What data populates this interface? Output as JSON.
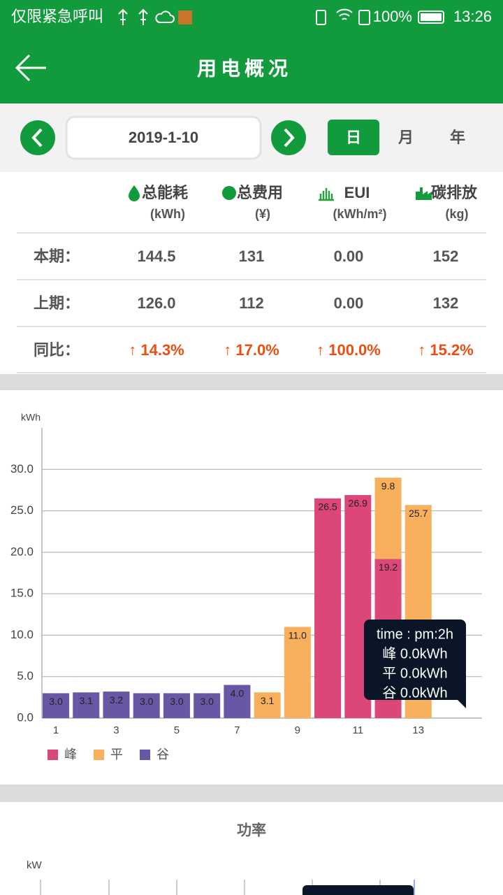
{
  "status_bar": {
    "carrier": "仅限紧急呼叫",
    "battery": "100%",
    "time": "13:26"
  },
  "header": {
    "title": "用电概况"
  },
  "date_picker": {
    "date": "2019-1-10",
    "tabs": [
      "日",
      "月",
      "年"
    ],
    "selected_tab": "日"
  },
  "summary_table": {
    "columns": [
      {
        "label": "总能耗",
        "unit": "(kWh)"
      },
      {
        "label": "总费用",
        "unit": "(¥)"
      },
      {
        "label": "EUI",
        "unit": "(kWh/m²)"
      },
      {
        "label": "碳排放",
        "unit": "(kg)"
      }
    ],
    "rows": [
      {
        "label": "本期：",
        "cells": [
          "144.5",
          "131",
          "0.00",
          "152"
        ]
      },
      {
        "label": "上期：",
        "cells": [
          "126.0",
          "112",
          "0.00",
          "132"
        ]
      },
      {
        "label": "同比：",
        "cells": [
          "↑ 14.3%",
          "↑ 17.0%",
          "↑ 100.0%",
          "↑ 15.2%"
        ]
      }
    ]
  },
  "chart_data": {
    "type": "bar",
    "stacked": true,
    "y_label": "kWh",
    "categories": [
      "1",
      null,
      "3",
      null,
      "5",
      null,
      "7",
      null,
      "9",
      null,
      "11",
      null,
      "13"
    ],
    "series": [
      {
        "name": "峰",
        "color": "#dc4679",
        "values": [
          null,
          null,
          null,
          null,
          null,
          null,
          null,
          null,
          null,
          26.5,
          26.9,
          19.2,
          null
        ],
        "value_labels": [
          null,
          null,
          null,
          null,
          null,
          null,
          null,
          null,
          null,
          "26.5",
          "26.9",
          "19.2",
          null
        ]
      },
      {
        "name": "平",
        "color": "#f8b05c",
        "values": [
          null,
          null,
          null,
          null,
          null,
          null,
          null,
          3.1,
          11.0,
          null,
          null,
          9.8,
          25.7
        ],
        "value_labels": [
          null,
          null,
          null,
          null,
          null,
          null,
          null,
          "3.1",
          "11.0",
          null,
          null,
          "9.8",
          "25.7"
        ]
      },
      {
        "name": "谷",
        "color": "#6757a5",
        "values": [
          3.0,
          3.1,
          3.2,
          3.0,
          3.0,
          3.0,
          4.0,
          null,
          null,
          null,
          null,
          null,
          null
        ],
        "value_labels": [
          "3.0",
          "3.1",
          "3.2",
          "3.0",
          "3.0",
          "3.0",
          "4.0",
          null,
          null,
          null,
          null,
          null,
          null
        ]
      }
    ],
    "ylim": [
      0,
      35
    ],
    "yticks": [
      {
        "value": 0,
        "label": "0.0"
      },
      {
        "value": 5,
        "label": "5.0"
      },
      {
        "value": 10,
        "label": "10.0"
      },
      {
        "value": 15,
        "label": "15.0"
      },
      {
        "value": 20,
        "label": "20.0"
      },
      {
        "value": 25,
        "label": "25.0"
      },
      {
        "value": 30,
        "label": "30.0"
      }
    ],
    "grid": true,
    "legend": "bottom-left",
    "tooltip": {
      "lines": [
        "time : pm:2h",
        "峰 0.0kWh",
        "平 0.0kWh",
        "谷 0.0kWh"
      ]
    }
  },
  "power_section": {
    "title": "功率",
    "y_label": "kW"
  }
}
